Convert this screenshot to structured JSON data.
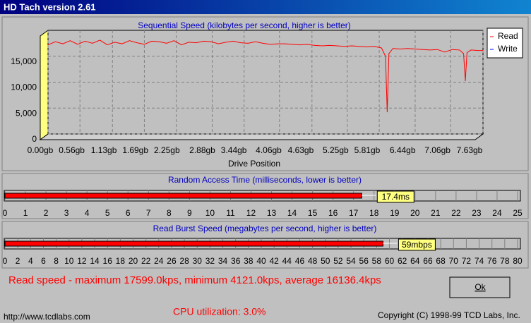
{
  "window": {
    "title": "HD Tach version 2.61"
  },
  "chart_data": [
    {
      "type": "line",
      "title": "Sequential Speed (kilobytes per second, higher is better)",
      "xlabel": "Drive Position",
      "x": [
        0,
        0.13,
        0.26,
        0.39,
        0.52,
        0.65,
        0.78,
        0.91,
        1.04,
        1.17,
        1.3,
        1.43,
        1.56,
        1.69,
        1.82,
        1.95,
        2.08,
        2.21,
        2.34,
        2.47,
        2.6,
        2.73,
        2.86,
        2.99,
        3.12,
        3.25,
        3.38,
        3.51,
        3.64,
        3.77,
        3.9,
        4.03,
        4.16,
        4.29,
        4.42,
        4.55,
        4.68,
        4.81,
        4.94,
        5.07,
        5.2,
        5.33,
        5.46,
        5.59,
        5.72,
        5.85,
        5.92,
        5.95,
        5.98,
        6.05,
        6.18,
        6.31,
        6.44,
        6.57,
        6.7,
        6.83,
        6.96,
        7.09,
        7.22,
        7.29,
        7.32,
        7.35,
        7.42,
        7.55,
        7.63
      ],
      "series": [
        {
          "name": "Read",
          "color": "#ff0000",
          "values": [
            17200,
            17800,
            17400,
            18000,
            17300,
            17900,
            17500,
            18100,
            17200,
            17700,
            17400,
            18000,
            17600,
            17300,
            17900,
            17800,
            17500,
            18000,
            17200,
            17700,
            17600,
            17900,
            17800,
            17400,
            17700,
            17900,
            17600,
            17500,
            17800,
            17500,
            17300,
            17400,
            17400,
            17300,
            17200,
            17300,
            17100,
            17000,
            17100,
            17000,
            16900,
            17000,
            16900,
            16800,
            16900,
            16600,
            15000,
            4200,
            15500,
            16500,
            16400,
            16500,
            16400,
            16300,
            16200,
            16300,
            15800,
            16300,
            16200,
            15500,
            10200,
            15700,
            16200,
            16100,
            16100
          ]
        },
        {
          "name": "Write",
          "color": "#0000ff",
          "values": [
            null,
            null,
            null,
            null,
            null,
            null,
            null,
            null,
            null,
            null,
            null,
            null,
            null,
            null,
            null,
            null,
            null,
            null,
            null,
            null,
            null,
            null,
            null,
            null,
            null,
            null,
            null,
            null,
            null,
            null,
            null,
            null,
            null,
            null,
            null,
            null,
            null,
            null,
            null,
            null,
            null,
            null,
            null,
            null,
            null,
            null,
            null,
            null,
            null,
            null,
            null,
            null,
            null,
            null,
            null,
            null,
            null,
            null,
            null,
            null,
            null,
            null,
            null,
            null,
            null
          ]
        }
      ],
      "xlim": [
        0,
        7.63
      ],
      "xticks": [
        {
          "value": 0,
          "label": "0.00gb"
        },
        {
          "value": 0.56,
          "label": "0.56gb"
        },
        {
          "value": 1.13,
          "label": "1.13gb"
        },
        {
          "value": 1.69,
          "label": "1.69gb"
        },
        {
          "value": 2.25,
          "label": "2.25gb"
        },
        {
          "value": 2.88,
          "label": "2.88gb"
        },
        {
          "value": 3.44,
          "label": "3.44gb"
        },
        {
          "value": 4.06,
          "label": "4.06gb"
        },
        {
          "value": 4.63,
          "label": "4.63gb"
        },
        {
          "value": 5.25,
          "label": "5.25gb"
        },
        {
          "value": 5.81,
          "label": "5.81gb"
        },
        {
          "value": 6.44,
          "label": "6.44gb"
        },
        {
          "value": 7.06,
          "label": "7.06gb"
        },
        {
          "value": 7.63,
          "label": "7.63gb"
        }
      ],
      "ylim": [
        0,
        20000
      ],
      "yticks": [
        0,
        {
          "value": 5000,
          "label": "5,000"
        },
        {
          "value": 10000,
          "label": "10,000"
        },
        {
          "value": 15000,
          "label": "15,000"
        }
      ],
      "grid": true
    },
    {
      "type": "hbar",
      "title": "Random Access Time (milliseconds, lower is better)",
      "values": [
        17.4
      ],
      "value_labels": [
        "17.4ms"
      ],
      "color": "#ff0000",
      "xlim": [
        0,
        25
      ],
      "xticks": [
        0,
        1,
        2,
        3,
        4,
        5,
        6,
        7,
        8,
        9,
        10,
        11,
        12,
        13,
        14,
        15,
        16,
        17,
        18,
        19,
        20,
        21,
        22,
        23,
        24,
        25
      ]
    },
    {
      "type": "hbar",
      "title": "Read Burst Speed (megabytes per second, higher is better)",
      "values": [
        59
      ],
      "value_labels": [
        "59mbps"
      ],
      "color": "#ff0000",
      "xlim": [
        0,
        80
      ],
      "xticks": [
        0,
        2,
        4,
        6,
        8,
        10,
        12,
        14,
        16,
        18,
        20,
        22,
        24,
        26,
        28,
        30,
        32,
        34,
        36,
        38,
        40,
        42,
        44,
        46,
        48,
        50,
        52,
        54,
        56,
        58,
        60,
        62,
        64,
        66,
        68,
        70,
        72,
        74,
        76,
        78,
        80
      ]
    }
  ],
  "summary": "Read speed - maximum 17599.0kps, minimum 4121.0kps, average 16136.4kps",
  "button": "Ok",
  "footer": {
    "url": "http://www.tcdlabs.com",
    "cpu": "CPU utilization: 3.0%",
    "copyright": "Copyright (C) 1998-99 TCD Labs, Inc."
  }
}
